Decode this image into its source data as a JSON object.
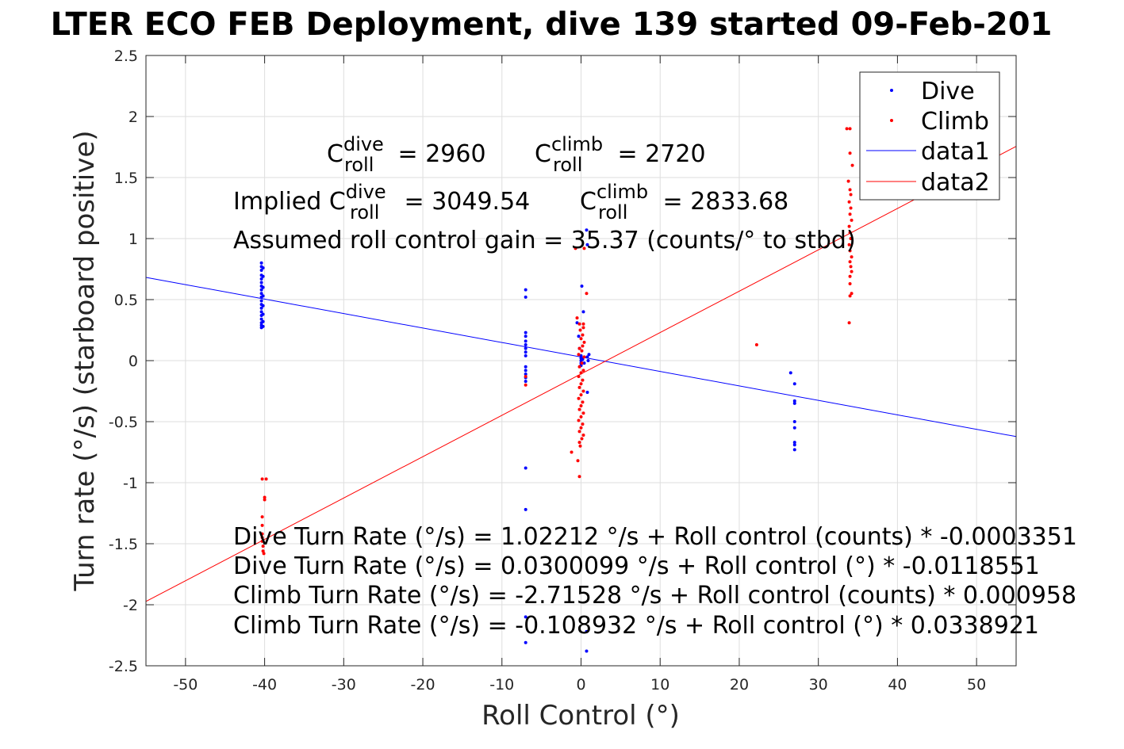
{
  "chart_data": {
    "type": "scatter",
    "title": "LTER ECO FEB Deployment, dive 139 started 09-Feb-201",
    "xlabel": "Roll Control (°)",
    "ylabel": "Turn rate (°/s) (starboard positive)",
    "xlim": [
      -55,
      55
    ],
    "ylim": [
      -2.5,
      2.5
    ],
    "xticks": [
      -50,
      -40,
      -30,
      -20,
      -10,
      0,
      10,
      20,
      30,
      40,
      50
    ],
    "yticks": [
      -2.5,
      -2,
      -1.5,
      -1,
      -0.5,
      0,
      0.5,
      1,
      1.5,
      2,
      2.5
    ],
    "grid": true,
    "legend_position": "top-right",
    "legend": [
      {
        "label": "Dive",
        "kind": "dot",
        "color": "#0000ff"
      },
      {
        "label": "Climb",
        "kind": "dot",
        "color": "#ff0000"
      },
      {
        "label": "data1",
        "kind": "line",
        "color": "#0000ff"
      },
      {
        "label": "data2",
        "kind": "line",
        "color": "#ff0000"
      }
    ],
    "series": [
      {
        "name": "Dive",
        "kind": "scatter",
        "color": "#0000ff",
        "points": [
          [
            -40.4,
            0.27
          ],
          [
            -40.4,
            0.29
          ],
          [
            -40.4,
            0.31
          ],
          [
            -40.4,
            0.34
          ],
          [
            -40.4,
            0.37
          ],
          [
            -40.4,
            0.4
          ],
          [
            -40.4,
            0.43
          ],
          [
            -40.4,
            0.46
          ],
          [
            -40.4,
            0.49
          ],
          [
            -40.4,
            0.52
          ],
          [
            -40.4,
            0.55
          ],
          [
            -40.4,
            0.58
          ],
          [
            -40.4,
            0.61
          ],
          [
            -40.4,
            0.64
          ],
          [
            -40.4,
            0.67
          ],
          [
            -40.4,
            0.7
          ],
          [
            -40.4,
            0.74
          ],
          [
            -40.4,
            0.77
          ],
          [
            -40.4,
            0.8
          ],
          [
            -40.2,
            0.28
          ],
          [
            -40.2,
            0.32
          ],
          [
            -40.2,
            0.38
          ],
          [
            -40.2,
            0.45
          ],
          [
            -40.2,
            0.53
          ],
          [
            -40.2,
            0.6
          ],
          [
            -40.2,
            0.69
          ],
          [
            -40.2,
            0.76
          ],
          [
            -7,
            0.58
          ],
          [
            -7,
            0.52
          ],
          [
            -7,
            0.23
          ],
          [
            -7,
            0.2
          ],
          [
            -7,
            0.16
          ],
          [
            -7,
            0.13
          ],
          [
            -7,
            0.1
          ],
          [
            -7,
            0.07
          ],
          [
            -7,
            0.04
          ],
          [
            -7,
            -0.05
          ],
          [
            -7,
            -0.08
          ],
          [
            -7,
            -0.11
          ],
          [
            -7,
            -0.14
          ],
          [
            -7,
            -0.17
          ],
          [
            -7,
            -0.88
          ],
          [
            -7,
            -1.22
          ],
          [
            -7,
            -2.1
          ],
          [
            -7,
            -2.31
          ],
          [
            -0.5,
            0.31
          ],
          [
            -0.3,
            0.2
          ],
          [
            -0.2,
            0.1
          ],
          [
            0,
            0.04
          ],
          [
            0,
            0.02
          ],
          [
            0,
            0.0
          ],
          [
            0,
            -0.02
          ],
          [
            0,
            -0.04
          ],
          [
            0.2,
            0.01
          ],
          [
            0.4,
            -0.02
          ],
          [
            0.3,
            0.4
          ],
          [
            0.1,
            0.61
          ],
          [
            0.7,
            1.07
          ],
          [
            0.8,
            0.95
          ],
          [
            0.8,
            0.03
          ],
          [
            0.9,
            0.0
          ],
          [
            1,
            0.05
          ],
          [
            0.8,
            -0.26
          ],
          [
            0.7,
            -2.22
          ],
          [
            0.7,
            -2.38
          ],
          [
            26.5,
            -0.1
          ],
          [
            27,
            -0.19
          ],
          [
            27,
            -0.33
          ],
          [
            27,
            -0.35
          ],
          [
            27,
            -0.5
          ],
          [
            27,
            -0.55
          ],
          [
            27,
            -0.67
          ],
          [
            27,
            -0.69
          ],
          [
            27,
            -0.73
          ]
        ]
      },
      {
        "name": "Climb",
        "kind": "scatter",
        "color": "#ff0000",
        "points": [
          [
            -40.3,
            -0.97
          ],
          [
            -39.8,
            -0.97
          ],
          [
            -40.0,
            -1.12
          ],
          [
            -40.0,
            -1.14
          ],
          [
            -40.3,
            -1.28
          ],
          [
            -40.3,
            -1.35
          ],
          [
            -40.3,
            -1.42
          ],
          [
            -40.3,
            -1.45
          ],
          [
            -40.3,
            -1.48
          ],
          [
            -40.2,
            -1.52
          ],
          [
            -40.2,
            -1.56
          ],
          [
            -40.1,
            -1.58
          ],
          [
            -7,
            -0.2
          ],
          [
            -7,
            -0.13
          ],
          [
            -0.7,
            0.92
          ],
          [
            0.4,
            0.92
          ],
          [
            0.7,
            0.55
          ],
          [
            -0.5,
            0.35
          ],
          [
            -0.2,
            0.3
          ],
          [
            0.3,
            0.3
          ],
          [
            0.3,
            0.27
          ],
          [
            -0.1,
            0.25
          ],
          [
            0.2,
            0.21
          ],
          [
            0,
            0.18
          ],
          [
            0.4,
            0.15
          ],
          [
            0.2,
            0.12
          ],
          [
            -0.2,
            0.1
          ],
          [
            0.1,
            0.08
          ],
          [
            -0.3,
            0.05
          ],
          [
            0.4,
            0.03
          ],
          [
            0.1,
            -0.02
          ],
          [
            -0.2,
            -0.05
          ],
          [
            0.3,
            -0.08
          ],
          [
            0,
            -0.1
          ],
          [
            -0.3,
            -0.13
          ],
          [
            0.2,
            -0.16
          ],
          [
            0,
            -0.19
          ],
          [
            -0.2,
            -0.22
          ],
          [
            0.3,
            -0.25
          ],
          [
            0,
            -0.28
          ],
          [
            -0.3,
            -0.31
          ],
          [
            0.2,
            -0.34
          ],
          [
            0,
            -0.37
          ],
          [
            -0.2,
            -0.4
          ],
          [
            0.3,
            -0.43
          ],
          [
            0,
            -0.46
          ],
          [
            -0.3,
            -0.49
          ],
          [
            0.2,
            -0.52
          ],
          [
            0,
            -0.55
          ],
          [
            -0.2,
            -0.58
          ],
          [
            0.3,
            -0.61
          ],
          [
            0.1,
            -0.64
          ],
          [
            -0.2,
            -0.67
          ],
          [
            -0.1,
            -0.7
          ],
          [
            -1.2,
            -0.75
          ],
          [
            -0.4,
            -0.82
          ],
          [
            -0.2,
            -0.95
          ],
          [
            22.2,
            0.13
          ],
          [
            33.6,
            1.9
          ],
          [
            34.0,
            1.9
          ],
          [
            34.0,
            1.7
          ],
          [
            34.3,
            1.6
          ],
          [
            33.8,
            1.47
          ],
          [
            34.0,
            1.4
          ],
          [
            34.1,
            1.36
          ],
          [
            33.9,
            1.3
          ],
          [
            34.1,
            1.25
          ],
          [
            34.0,
            1.2
          ],
          [
            34.2,
            1.15
          ],
          [
            33.9,
            1.1
          ],
          [
            34.0,
            1.05
          ],
          [
            34.1,
            1.0
          ],
          [
            33.9,
            0.95
          ],
          [
            34.0,
            0.9
          ],
          [
            34.2,
            0.85
          ],
          [
            34.0,
            0.81
          ],
          [
            34.1,
            0.77
          ],
          [
            34.2,
            0.73
          ],
          [
            34.0,
            0.69
          ],
          [
            34.0,
            0.63
          ],
          [
            34.2,
            0.55
          ],
          [
            34.0,
            0.53
          ],
          [
            33.9,
            0.31
          ]
        ]
      },
      {
        "name": "data1",
        "kind": "line",
        "color": "#0000ff",
        "intercept": 0.0300099,
        "slope": -0.0118551
      },
      {
        "name": "data2",
        "kind": "line",
        "color": "#ff0000",
        "intercept": -0.108932,
        "slope": 0.0338921
      }
    ],
    "annotations": {
      "c_dive_prefix": "C",
      "c_dive_sup": "dive",
      "c_dive_sub": "roll",
      "c_dive_value": " = 2960",
      "c_climb_prefix": "C",
      "c_climb_sup": "climb",
      "c_climb_sub": "roll",
      "c_climb_value": " = 2720",
      "implied_prefix": "Implied C",
      "implied_dive_sup": "dive",
      "implied_dive_sub": "roll",
      "implied_dive_value": " = 3049.54",
      "implied_climb_prefix": "C",
      "implied_climb_sup": "climb",
      "implied_climb_sub": "roll",
      "implied_climb_value": " = 2833.68",
      "gain_text": "Assumed roll control gain = 35.37 (counts/° to stbd)",
      "equations": [
        "Dive Turn Rate (°/s) = 1.02212 °/s + Roll control (counts) * -0.0003351",
        "Dive Turn Rate (°/s) = 0.0300099 °/s + Roll control (°) * -0.0118551",
        "Climb Turn Rate (°/s) = -2.71528 °/s + Roll control (counts) * 0.000958",
        "Climb Turn Rate (°/s) = -0.108932 °/s + Roll control (°) * 0.0338921"
      ]
    }
  }
}
